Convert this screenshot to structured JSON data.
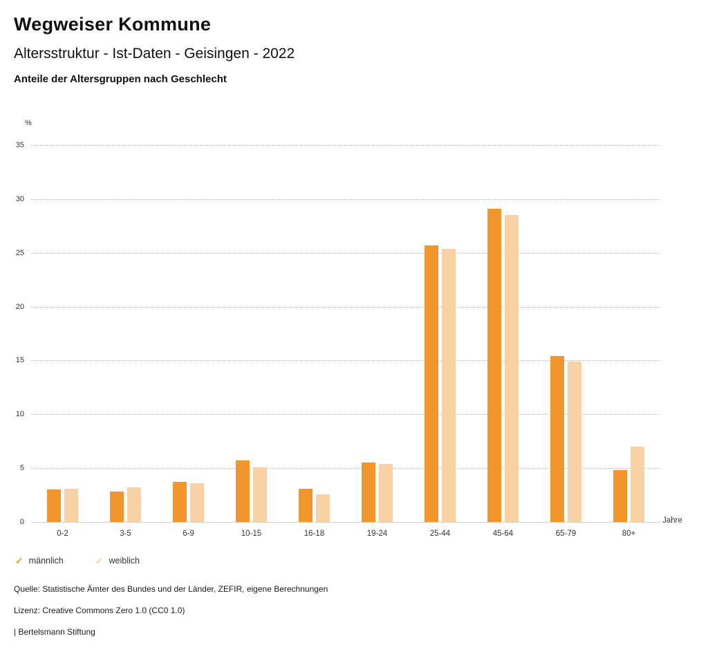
{
  "header": {
    "title": "Wegweiser Kommune",
    "subtitle": "Altersstruktur - Ist-Daten - Geisingen - 2022",
    "section_title": "Anteile der Altersgruppen nach Geschlecht"
  },
  "chart_data": {
    "type": "bar",
    "title": "Anteile der Altersgruppen nach Geschlecht",
    "categories": [
      "0-2",
      "3-5",
      "6-9",
      "10-15",
      "16-18",
      "19-24",
      "25-44",
      "45-64",
      "65-79",
      "80+"
    ],
    "series": [
      {
        "name": "männlich",
        "color": "#F0962C",
        "values": [
          3.0,
          2.8,
          3.7,
          5.7,
          3.1,
          5.5,
          25.7,
          29.1,
          15.4,
          4.8
        ]
      },
      {
        "name": "weiblich",
        "color": "#F8D2A4",
        "values": [
          3.1,
          3.2,
          3.6,
          5.1,
          2.6,
          5.4,
          25.4,
          28.5,
          14.9,
          7.0
        ]
      }
    ],
    "y_unit": "%",
    "xlabel": "Jahre",
    "ylabel": "%",
    "ylim": [
      0,
      35
    ],
    "ytick_step": 5,
    "grid": "horizontal-dotted",
    "legend_position": "bottom-left",
    "legend_marker": "✓"
  },
  "footer": {
    "source": "Quelle: Statistische Ämter des Bundes und der Länder, ZEFIR, eigene Berechnungen",
    "license": "Lizenz: Creative Commons Zero 1.0 (CC0 1.0)",
    "attribution": "| Bertelsmann Stiftung"
  }
}
